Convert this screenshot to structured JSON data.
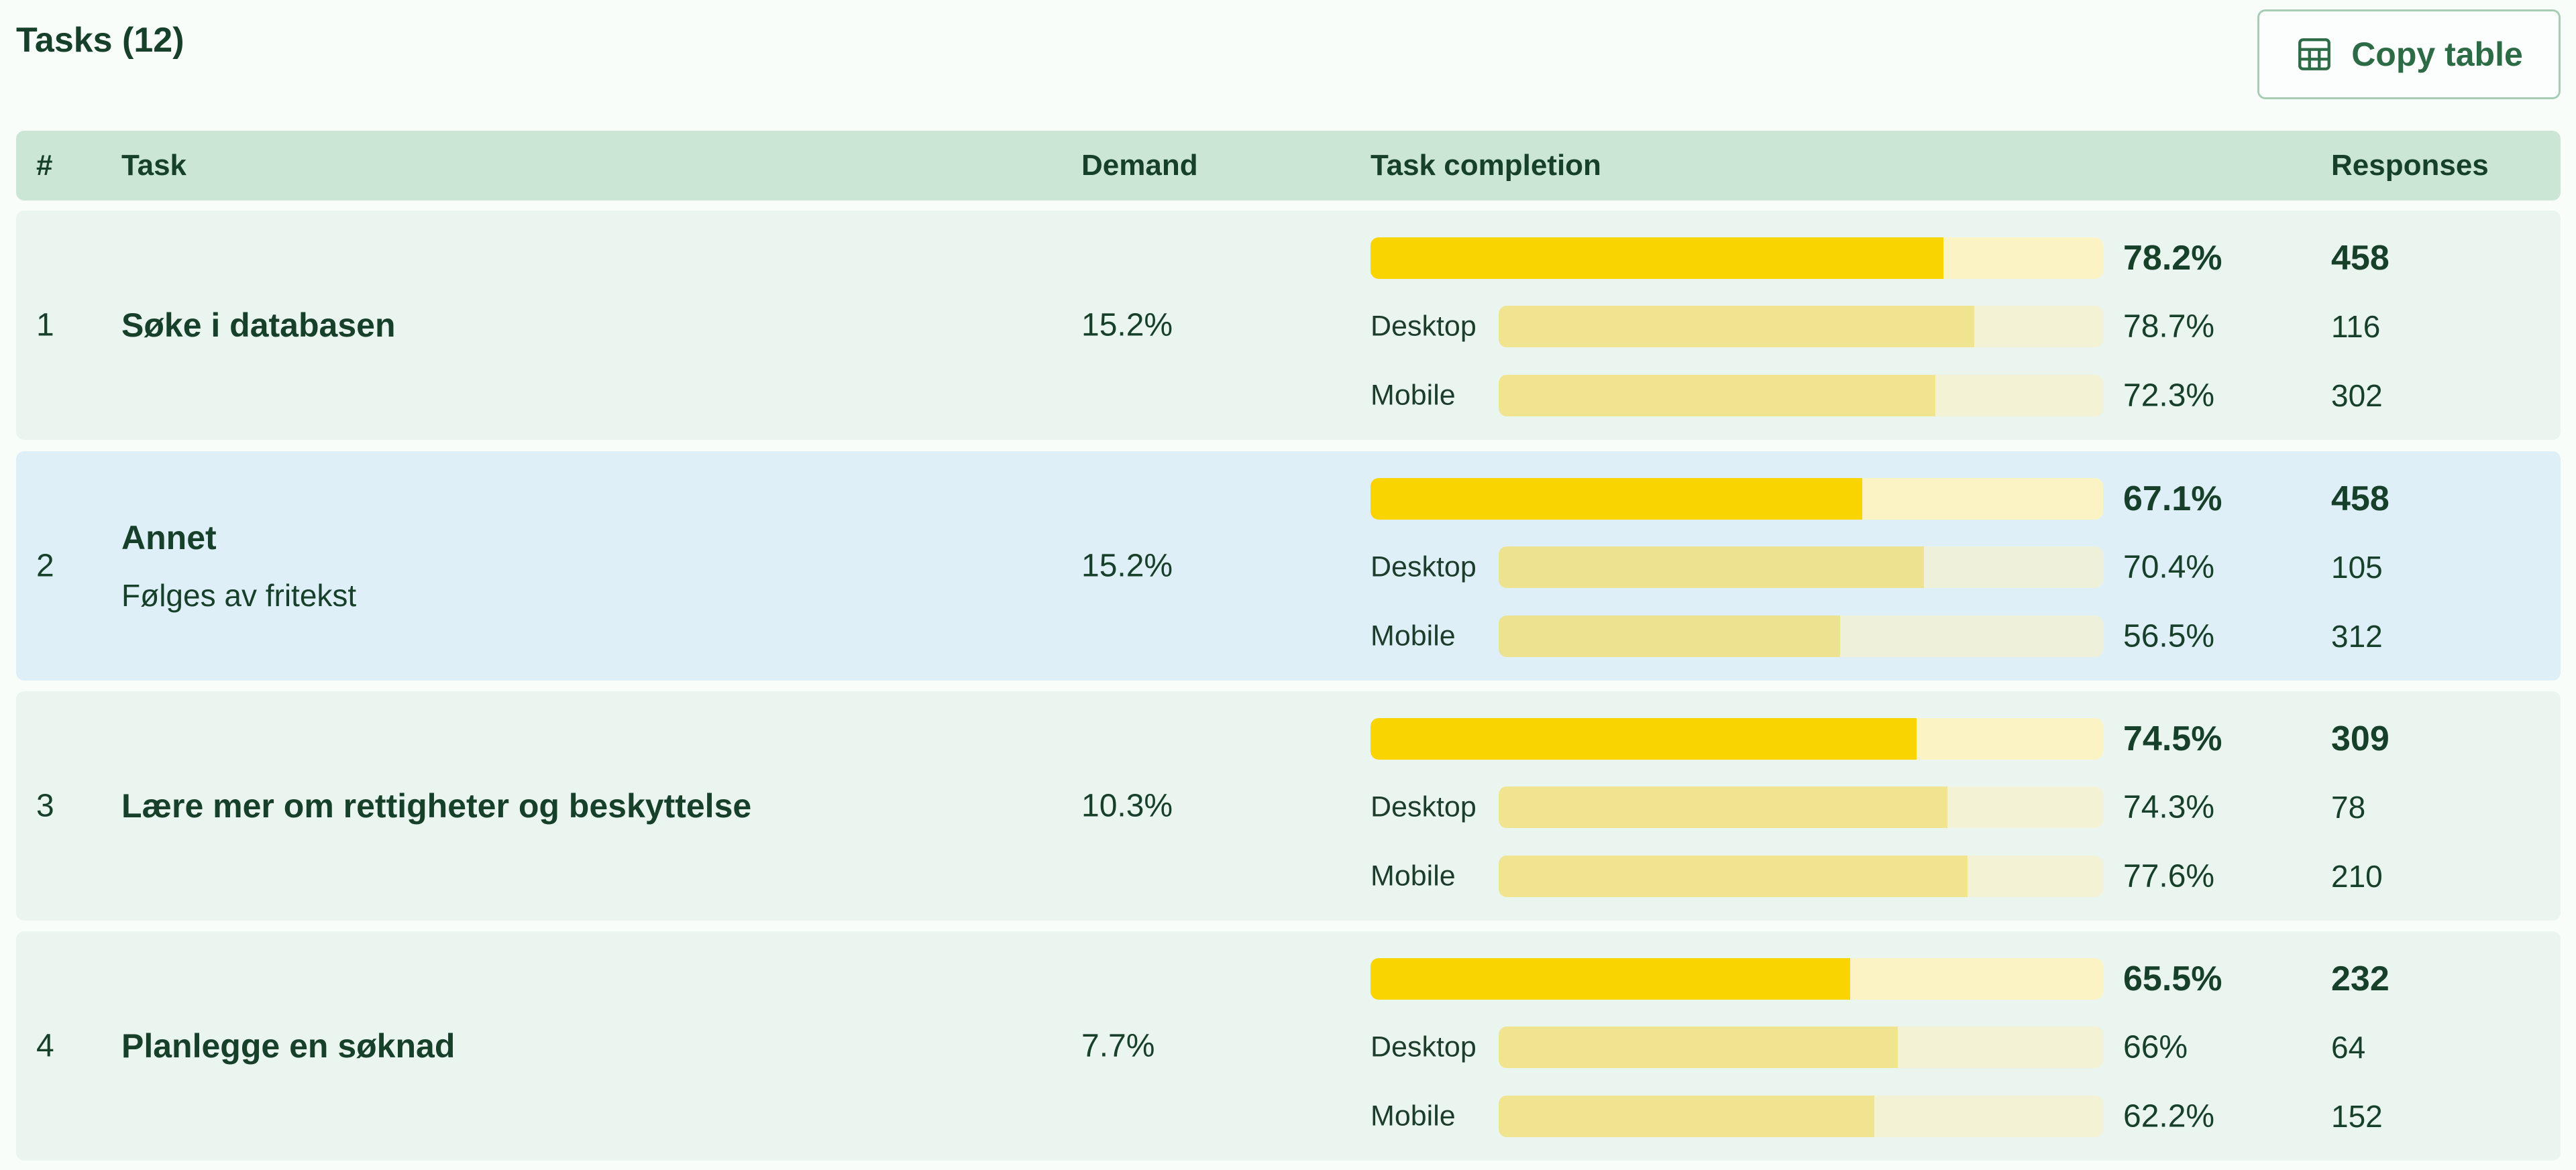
{
  "header": {
    "title": "Tasks (12)",
    "copy_label": "Copy table",
    "copy_icon": "table-icon"
  },
  "columns": {
    "num": "#",
    "task": "Task",
    "demand": "Demand",
    "completion": "Task completion",
    "responses": "Responses"
  },
  "rows": [
    {
      "num": "1",
      "title": "Søke i databasen",
      "subtitle": "",
      "demand": "15.2%",
      "total": {
        "pct": "78.2%",
        "value": 0.782,
        "responses": "458"
      },
      "desktop": {
        "label": "Desktop",
        "pct": "78.7%",
        "value": 0.787,
        "responses": "116"
      },
      "mobile": {
        "label": "Mobile",
        "pct": "72.3%",
        "value": 0.723,
        "responses": "302"
      }
    },
    {
      "num": "2",
      "title": "Annet",
      "subtitle": "Følges av fritekst",
      "demand": "15.2%",
      "total": {
        "pct": "67.1%",
        "value": 0.671,
        "responses": "458"
      },
      "desktop": {
        "label": "Desktop",
        "pct": "70.4%",
        "value": 0.704,
        "responses": "105"
      },
      "mobile": {
        "label": "Mobile",
        "pct": "56.5%",
        "value": 0.565,
        "responses": "312"
      }
    },
    {
      "num": "3",
      "title": "Lære mer om rettigheter og beskyttelse",
      "subtitle": "",
      "demand": "10.3%",
      "total": {
        "pct": "74.5%",
        "value": 0.745,
        "responses": "309"
      },
      "desktop": {
        "label": "Desktop",
        "pct": "74.3%",
        "value": 0.743,
        "responses": "78"
      },
      "mobile": {
        "label": "Mobile",
        "pct": "77.6%",
        "value": 0.776,
        "responses": "210"
      }
    },
    {
      "num": "4",
      "title": "Planlegge en søknad",
      "subtitle": "",
      "demand": "7.7%",
      "total": {
        "pct": "65.5%",
        "value": 0.655,
        "responses": "232"
      },
      "desktop": {
        "label": "Desktop",
        "pct": "66%",
        "value": 0.66,
        "responses": "64"
      },
      "mobile": {
        "label": "Mobile",
        "pct": "62.2%",
        "value": 0.622,
        "responses": "152"
      }
    }
  ]
}
